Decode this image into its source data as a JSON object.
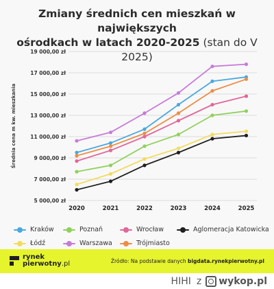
{
  "title_part1": "Zmiany średnich cen mieszkań w największych",
  "title_part2": "ośrodkach w latach 2020-2025",
  "title_part3": "(stan do V 2025)",
  "footer": {
    "logo_line1": "rynek",
    "logo_line2": "pierwotny",
    "logo_suffix": ".pl",
    "source_prefix": "Źródło: Na podstawie danych",
    "source_site": "bigdata.rynekpierwotny.pl"
  },
  "watermark": {
    "user": "HIHI",
    "z": "z",
    "site": "wykop.pl"
  },
  "chart_data": {
    "type": "line",
    "title": "Zmiany średnich cen mieszkań w największych ośrodkach w latach 2020-2025 (stan do V 2025)",
    "xlabel": "",
    "ylabel": "Średnia cena m kw. mieszkania",
    "x": [
      "2020",
      "2021",
      "2022",
      "2023",
      "2024",
      "2025"
    ],
    "ylim": [
      5000,
      19000
    ],
    "yticks": [
      5000,
      7000,
      9000,
      11000,
      13000,
      15000,
      17000,
      19000
    ],
    "ytick_labels": [
      "5 000,00 zł",
      "7 000,00 zł",
      "9 000,00 zł",
      "11 000,00 zł",
      "13 000,00 zł",
      "15 000,00 zł",
      "17 000,00 zł",
      "19 000,00 zł"
    ],
    "grid": true,
    "legend_position": "bottom",
    "series": [
      {
        "name": "Kraków",
        "color": "#4aa8de",
        "values": [
          9500,
          10400,
          11700,
          14000,
          16200,
          16600
        ]
      },
      {
        "name": "Poznań",
        "color": "#8fd15a",
        "values": [
          7700,
          8300,
          10100,
          11200,
          13000,
          13400
        ]
      },
      {
        "name": "Wrocław",
        "color": "#e0679a",
        "values": [
          8700,
          9700,
          11000,
          12500,
          14000,
          14800
        ]
      },
      {
        "name": "Aglomeracja Katowicka",
        "color": "#1f1f1f",
        "values": [
          6000,
          6800,
          8300,
          9500,
          10800,
          11100
        ]
      },
      {
        "name": "Łódź",
        "color": "#f1dc5e",
        "values": [
          6500,
          7500,
          8900,
          9900,
          11200,
          11500
        ]
      },
      {
        "name": "Warszawa",
        "color": "#c77bd9",
        "values": [
          10600,
          11400,
          13200,
          15100,
          17600,
          17800
        ]
      },
      {
        "name": "Trójmiasto",
        "color": "#ed8d45",
        "values": [
          9200,
          10100,
          11300,
          13200,
          15300,
          16400
        ]
      }
    ]
  }
}
